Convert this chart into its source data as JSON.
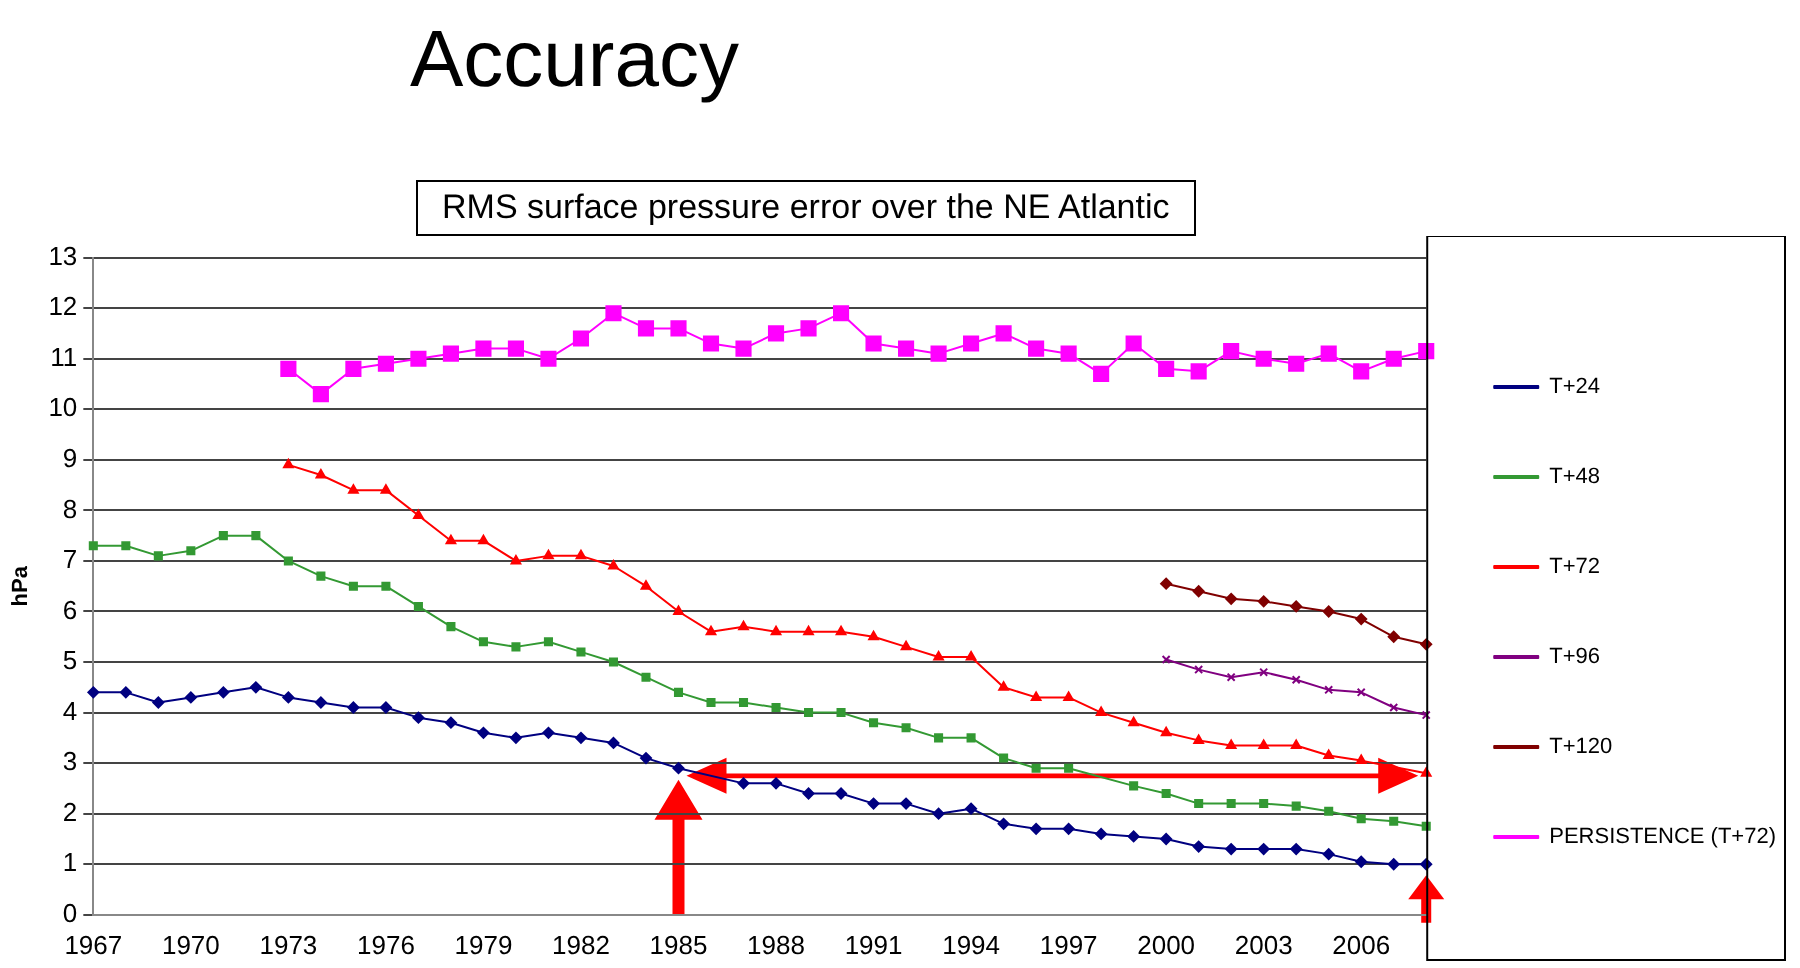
{
  "chart_data": {
    "type": "line",
    "title": "Accuracy",
    "subtitle": "RMS surface pressure error over the NE Atlantic",
    "ylabel": "hPa",
    "categories": [
      "1967",
      null,
      null,
      "1970",
      null,
      null,
      "1973",
      null,
      null,
      "1976",
      null,
      null,
      "1979",
      null,
      null,
      "1982",
      null,
      null,
      "1985",
      null,
      null,
      "1988",
      null,
      null,
      "1991",
      null,
      null,
      "1994",
      null,
      null,
      "1997",
      null,
      null,
      "2000",
      null,
      null,
      "2003",
      null,
      null,
      "2006",
      null,
      null
    ],
    "series": [
      {
        "name": "T+24",
        "color": "#000080",
        "marker": "diamond",
        "values": [
          4.4,
          4.4,
          4.2,
          4.3,
          4.4,
          4.5,
          4.3,
          4.2,
          4.1,
          4.1,
          3.9,
          3.8,
          3.6,
          3.5,
          3.6,
          3.5,
          3.4,
          3.1,
          2.9,
          null,
          2.6,
          2.6,
          2.4,
          2.4,
          2.2,
          2.2,
          2.0,
          2.1,
          1.8,
          1.7,
          1.7,
          1.6,
          1.55,
          1.5,
          1.35,
          1.3,
          1.3,
          1.3,
          1.2,
          1.05,
          1.0,
          1.0
        ]
      },
      {
        "name": "T+48",
        "color": "#339933",
        "marker": "square",
        "values": [
          7.3,
          7.3,
          7.1,
          7.2,
          7.5,
          7.5,
          7.0,
          6.7,
          6.5,
          6.5,
          6.1,
          5.7,
          5.4,
          5.3,
          5.4,
          5.2,
          5.0,
          4.7,
          4.4,
          4.2,
          4.2,
          4.1,
          4.0,
          4.0,
          3.8,
          3.7,
          3.5,
          3.5,
          3.1,
          2.9,
          2.9,
          null,
          2.55,
          2.4,
          2.2,
          2.2,
          2.2,
          2.15,
          2.05,
          1.9,
          1.85,
          1.75
        ]
      },
      {
        "name": "T+72",
        "color": "#ff0000",
        "marker": "triangle",
        "values": [
          null,
          null,
          null,
          null,
          null,
          null,
          8.9,
          8.7,
          8.4,
          8.4,
          7.9,
          7.4,
          7.4,
          7.0,
          7.1,
          7.1,
          6.9,
          6.5,
          6.0,
          5.6,
          5.7,
          5.6,
          5.6,
          5.6,
          5.5,
          5.3,
          5.1,
          5.1,
          4.5,
          4.3,
          4.3,
          4.0,
          3.8,
          3.6,
          3.45,
          3.35,
          3.35,
          3.35,
          3.15,
          3.05,
          null,
          2.8
        ]
      },
      {
        "name": "T+96",
        "color": "#800080",
        "marker": "cross",
        "values": [
          null,
          null,
          null,
          null,
          null,
          null,
          null,
          null,
          null,
          null,
          null,
          null,
          null,
          null,
          null,
          null,
          null,
          null,
          null,
          null,
          null,
          null,
          null,
          null,
          null,
          null,
          null,
          null,
          null,
          null,
          null,
          null,
          null,
          5.05,
          4.85,
          4.7,
          4.8,
          4.65,
          4.45,
          4.4,
          4.1,
          3.95
        ]
      },
      {
        "name": "T+120",
        "color": "#800000",
        "marker": "diamond",
        "values": [
          null,
          null,
          null,
          null,
          null,
          null,
          null,
          null,
          null,
          null,
          null,
          null,
          null,
          null,
          null,
          null,
          null,
          null,
          null,
          null,
          null,
          null,
          null,
          null,
          null,
          null,
          null,
          null,
          null,
          null,
          null,
          null,
          null,
          6.55,
          6.4,
          6.25,
          6.2,
          6.1,
          6.0,
          5.85,
          5.5,
          5.35
        ]
      },
      {
        "name": "PERSISTENCE (T+72)",
        "color": "#ff00ff",
        "marker": "square",
        "values": [
          null,
          null,
          null,
          null,
          null,
          null,
          10.8,
          10.3,
          10.8,
          10.9,
          11.0,
          11.1,
          11.2,
          11.2,
          11.0,
          11.4,
          11.9,
          11.6,
          11.6,
          11.3,
          11.2,
          11.5,
          11.6,
          11.9,
          11.3,
          11.2,
          11.1,
          11.3,
          11.5,
          11.2,
          11.1,
          10.7,
          11.3,
          10.8,
          10.75,
          11.15,
          11.0,
          10.9,
          11.1,
          10.75,
          11.0,
          11.15
        ]
      }
    ],
    "ylim": [
      0,
      13
    ],
    "yticks": [
      0,
      1,
      2,
      3,
      4,
      5,
      6,
      7,
      8,
      9,
      10,
      11,
      12,
      13
    ],
    "grid": "y",
    "legend": "right"
  }
}
